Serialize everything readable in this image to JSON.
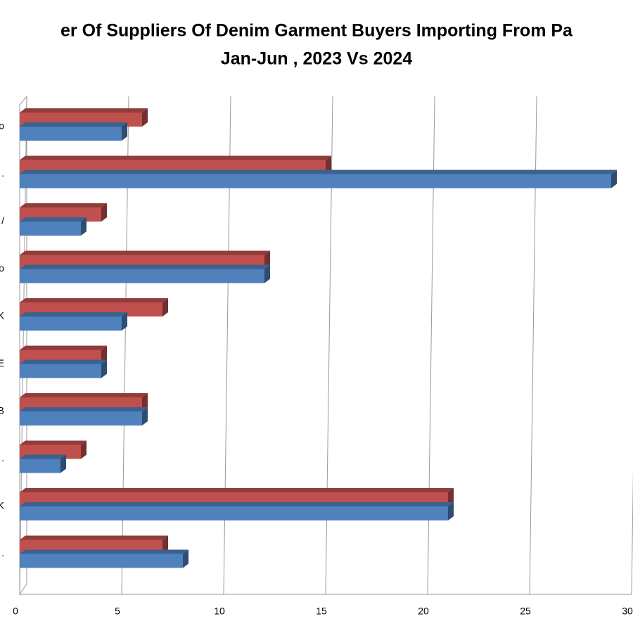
{
  "chart_data": {
    "type": "bar3d_horizontal",
    "title": "er Of Suppliers Of Denim Garment Buyers Importing From Pa",
    "subtitle": "Jan-Jun , 2023 Vs 2024",
    "categories": [
      "o",
      ".",
      "/",
      "o",
      "K",
      "E",
      "B",
      ".",
      "K",
      "."
    ],
    "series": [
      {
        "color": "#c0504d",
        "values": [
          6,
          15,
          4,
          12,
          7,
          4,
          6,
          3,
          21,
          7
        ]
      },
      {
        "color": "#4f81bd",
        "values": [
          5,
          29,
          3,
          12,
          5,
          4,
          6,
          2,
          21,
          8
        ]
      }
    ],
    "xlim": [
      0,
      30
    ],
    "xticks": [
      0,
      5,
      10,
      15,
      20,
      25,
      30
    ],
    "grid": true
  }
}
